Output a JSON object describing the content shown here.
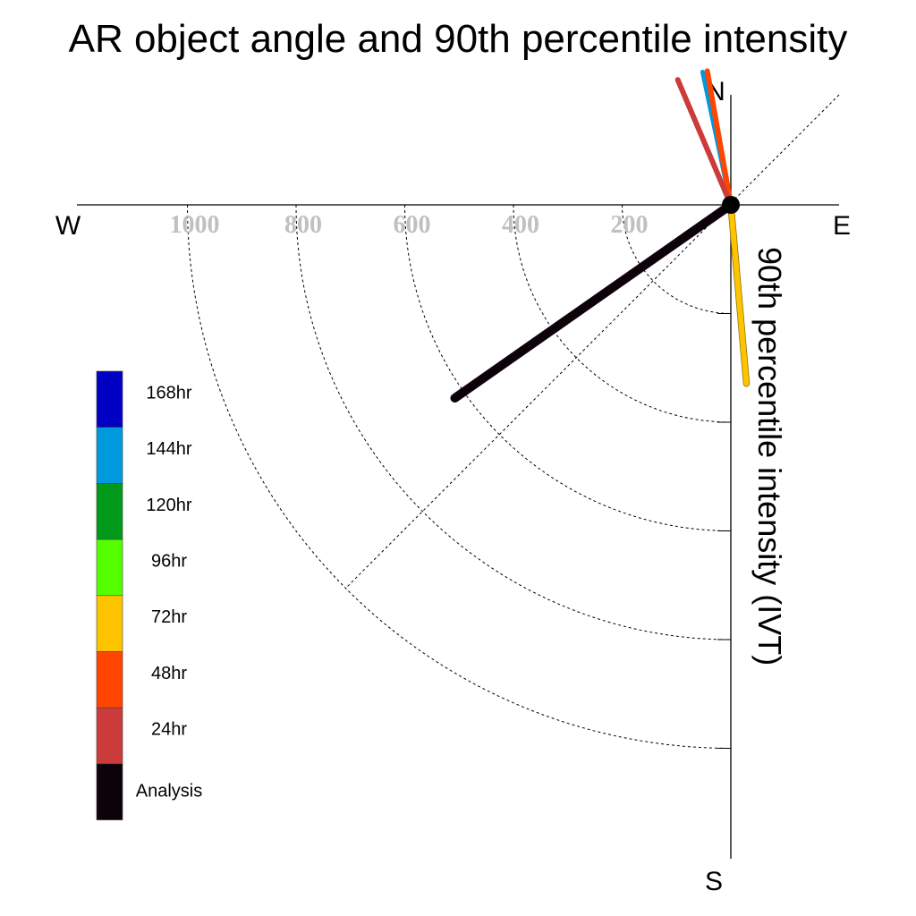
{
  "chart_data": {
    "type": "polar-vector",
    "title": "AR object angle and 90th percentile intensity",
    "ylabel": "90th percentile intensity (IVT)",
    "compass": {
      "n": "N",
      "e": "E",
      "s": "S",
      "w": "W"
    },
    "radial_ticks": [
      "200",
      "400",
      "600",
      "800",
      "1000"
    ],
    "radial_values": [
      200,
      400,
      600,
      800,
      1000
    ],
    "rlim": [
      0,
      1000
    ],
    "series": [
      {
        "name": "Analysis",
        "color": "#0d0209",
        "angle_deg": 235,
        "intensity": 620,
        "width": 10
      },
      {
        "name": "24hr",
        "color": "#cc3b3b",
        "angle_deg": 337,
        "intensity": 250,
        "width": 6
      },
      {
        "name": "48hr",
        "color": "#ff4500",
        "angle_deg": 350,
        "intensity": 250,
        "width": 6
      },
      {
        "name": "72hr",
        "color": "#ffc400",
        "angle_deg": 175,
        "intensity": 330,
        "width": 6
      },
      {
        "name": "96hr",
        "color": "#55ff00",
        "angle_deg": 0,
        "intensity": 0,
        "width": 6
      },
      {
        "name": "120hr",
        "color": "#00991a",
        "angle_deg": 0,
        "intensity": 0,
        "width": 6
      },
      {
        "name": "144hr",
        "color": "#0099dd",
        "angle_deg": 348,
        "intensity": 250,
        "width": 5
      },
      {
        "name": "168hr",
        "color": "#0000c3",
        "angle_deg": 0,
        "intensity": 0,
        "width": 6
      }
    ],
    "legend": {
      "position": "left",
      "items": [
        {
          "label": "168hr",
          "color": "#0000c3"
        },
        {
          "label": "144hr",
          "color": "#0099dd"
        },
        {
          "label": "120hr",
          "color": "#00991a"
        },
        {
          "label": "96hr",
          "color": "#55ff00"
        },
        {
          "label": "72hr",
          "color": "#ffc400"
        },
        {
          "label": "48hr",
          "color": "#ff4500"
        },
        {
          "label": "24hr",
          "color": "#cc3b3b"
        },
        {
          "label": "Analysis",
          "color": "#0d0209"
        }
      ]
    }
  }
}
